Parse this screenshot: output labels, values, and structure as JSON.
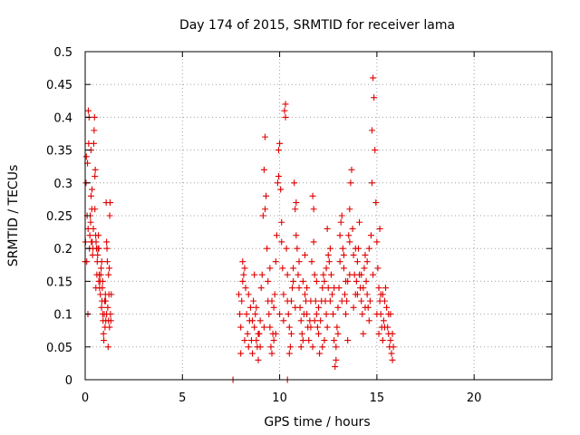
{
  "chart_data": {
    "type": "scatter",
    "title": "Day 174 of 2015, SRMTID for receiver lama",
    "xlabel": "GPS time / hours",
    "ylabel": "SRMTID / TECUs",
    "xlim": [
      0,
      24
    ],
    "ylim": [
      0,
      0.5
    ],
    "xticks": [
      0,
      5,
      10,
      15,
      20
    ],
    "yticks": [
      0,
      0.05,
      0.1,
      0.15,
      0.2,
      0.25,
      0.3,
      0.35,
      0.4,
      0.45,
      0.5
    ],
    "xtick_labels": [
      "0",
      "5",
      "10",
      "15",
      "20"
    ],
    "ytick_labels": [
      "0",
      "0.05",
      "0.1",
      "0.15",
      "0.2",
      "0.25",
      "0.3",
      "0.35",
      "0.4",
      "0.45",
      "0.5"
    ],
    "grid": true,
    "marker": "+",
    "color": "#e00000",
    "series": [
      {
        "name": "SRMTID",
        "points": [
          [
            0.0,
            0.18
          ],
          [
            0.02,
            0.21
          ],
          [
            0.04,
            0.3
          ],
          [
            0.06,
            0.34
          ],
          [
            0.08,
            0.18
          ],
          [
            0.1,
            0.25
          ],
          [
            0.12,
            0.33
          ],
          [
            0.14,
            0.1
          ],
          [
            0.16,
            0.41
          ],
          [
            0.18,
            0.36
          ],
          [
            0.2,
            0.4
          ],
          [
            0.22,
            0.2
          ],
          [
            0.24,
            0.22
          ],
          [
            0.26,
            0.25
          ],
          [
            0.28,
            0.24
          ],
          [
            0.3,
            0.35
          ],
          [
            0.32,
            0.21
          ],
          [
            0.34,
            0.26
          ],
          [
            0.36,
            0.21
          ],
          [
            0.38,
            0.19
          ],
          [
            0.4,
            0.2
          ],
          [
            0.42,
            0.23
          ],
          [
            0.44,
            0.36
          ],
          [
            0.46,
            0.38
          ],
          [
            0.48,
            0.4
          ],
          [
            0.5,
            0.31
          ],
          [
            0.52,
            0.32
          ],
          [
            0.54,
            0.22
          ],
          [
            0.56,
            0.21
          ],
          [
            0.58,
            0.2
          ],
          [
            0.6,
            0.16
          ],
          [
            0.62,
            0.18
          ],
          [
            0.64,
            0.19
          ],
          [
            0.66,
            0.2
          ],
          [
            0.68,
            0.22
          ],
          [
            0.7,
            0.15
          ],
          [
            0.72,
            0.16
          ],
          [
            0.74,
            0.14
          ],
          [
            0.76,
            0.15
          ],
          [
            0.78,
            0.13
          ],
          [
            0.8,
            0.16
          ],
          [
            0.82,
            0.17
          ],
          [
            0.84,
            0.11
          ],
          [
            0.86,
            0.12
          ],
          [
            0.88,
            0.14
          ],
          [
            0.9,
            0.1
          ],
          [
            0.92,
            0.09
          ],
          [
            0.94,
            0.07
          ],
          [
            0.96,
            0.06
          ],
          [
            0.98,
            0.1
          ],
          [
            1.0,
            0.12
          ],
          [
            1.02,
            0.08
          ],
          [
            1.04,
            0.13
          ],
          [
            1.06,
            0.09
          ],
          [
            1.08,
            0.27
          ],
          [
            1.1,
            0.21
          ],
          [
            1.12,
            0.2
          ],
          [
            1.14,
            0.18
          ],
          [
            1.16,
            0.11
          ],
          [
            1.18,
            0.05
          ],
          [
            1.2,
            0.09
          ],
          [
            1.22,
            0.13
          ],
          [
            1.24,
            0.17
          ],
          [
            1.26,
            0.25
          ],
          [
            1.28,
            0.27
          ],
          [
            1.3,
            0.1
          ],
          [
            1.32,
            0.09
          ],
          [
            1.34,
            0.13
          ],
          [
            0.3,
            0.28
          ],
          [
            0.5,
            0.26
          ],
          [
            0.7,
            0.2
          ],
          [
            0.9,
            0.15
          ],
          [
            1.1,
            0.1
          ],
          [
            1.25,
            0.08
          ],
          [
            0.15,
            0.23
          ],
          [
            0.35,
            0.29
          ],
          [
            0.55,
            0.14
          ],
          [
            0.85,
            0.18
          ],
          [
            1.05,
            0.12
          ],
          [
            1.2,
            0.16
          ],
          [
            7.6,
            0.0
          ],
          [
            10.4,
            0.0
          ],
          [
            7.9,
            0.13
          ],
          [
            7.95,
            0.1
          ],
          [
            8.0,
            0.08
          ],
          [
            8.05,
            0.12
          ],
          [
            8.1,
            0.15
          ],
          [
            8.15,
            0.16
          ],
          [
            8.2,
            0.17
          ],
          [
            8.25,
            0.14
          ],
          [
            8.3,
            0.1
          ],
          [
            8.35,
            0.07
          ],
          [
            8.4,
            0.05
          ],
          [
            8.45,
            0.09
          ],
          [
            8.5,
            0.11
          ],
          [
            8.55,
            0.06
          ],
          [
            8.6,
            0.04
          ],
          [
            8.65,
            0.12
          ],
          [
            8.7,
            0.08
          ],
          [
            8.75,
            0.1
          ],
          [
            8.8,
            0.06
          ],
          [
            8.85,
            0.05
          ],
          [
            8.9,
            0.03
          ],
          [
            8.95,
            0.07
          ],
          [
            9.0,
            0.09
          ],
          [
            9.05,
            0.14
          ],
          [
            9.1,
            0.16
          ],
          [
            9.15,
            0.25
          ],
          [
            9.2,
            0.32
          ],
          [
            9.25,
            0.37
          ],
          [
            9.3,
            0.28
          ],
          [
            9.35,
            0.2
          ],
          [
            9.4,
            0.12
          ],
          [
            9.45,
            0.1
          ],
          [
            9.5,
            0.08
          ],
          [
            9.55,
            0.05
          ],
          [
            9.6,
            0.04
          ],
          [
            9.65,
            0.07
          ],
          [
            9.7,
            0.11
          ],
          [
            9.75,
            0.13
          ],
          [
            9.8,
            0.18
          ],
          [
            9.85,
            0.22
          ],
          [
            9.9,
            0.3
          ],
          [
            9.95,
            0.35
          ],
          [
            10.0,
            0.36
          ],
          [
            10.05,
            0.29
          ],
          [
            10.1,
            0.24
          ],
          [
            10.15,
            0.17
          ],
          [
            10.2,
            0.13
          ],
          [
            10.25,
            0.41
          ],
          [
            10.3,
            0.42
          ],
          [
            10.35,
            0.2
          ],
          [
            10.4,
            0.16
          ],
          [
            10.45,
            0.1
          ],
          [
            10.5,
            0.08
          ],
          [
            10.55,
            0.05
          ],
          [
            10.6,
            0.12
          ],
          [
            10.65,
            0.14
          ],
          [
            10.7,
            0.15
          ],
          [
            10.75,
            0.3
          ],
          [
            10.8,
            0.26
          ],
          [
            10.85,
            0.22
          ],
          [
            10.9,
            0.2
          ],
          [
            10.95,
            0.16
          ],
          [
            11.0,
            0.14
          ],
          [
            11.05,
            0.11
          ],
          [
            11.1,
            0.09
          ],
          [
            11.15,
            0.07
          ],
          [
            11.2,
            0.06
          ],
          [
            11.25,
            0.1
          ],
          [
            11.3,
            0.13
          ],
          [
            11.35,
            0.12
          ],
          [
            11.4,
            0.1
          ],
          [
            11.45,
            0.08
          ],
          [
            11.5,
            0.06
          ],
          [
            11.55,
            0.09
          ],
          [
            11.6,
            0.12
          ],
          [
            11.65,
            0.18
          ],
          [
            11.7,
            0.28
          ],
          [
            11.75,
            0.26
          ],
          [
            11.8,
            0.16
          ],
          [
            11.85,
            0.12
          ],
          [
            11.9,
            0.1
          ],
          [
            11.95,
            0.08
          ],
          [
            12.0,
            0.07
          ],
          [
            12.05,
            0.04
          ],
          [
            12.1,
            0.09
          ],
          [
            12.15,
            0.12
          ],
          [
            12.2,
            0.14
          ],
          [
            12.25,
            0.16
          ],
          [
            12.3,
            0.15
          ],
          [
            12.35,
            0.12
          ],
          [
            12.4,
            0.1
          ],
          [
            12.45,
            0.08
          ],
          [
            12.5,
            0.14
          ],
          [
            12.55,
            0.18
          ],
          [
            12.6,
            0.2
          ],
          [
            12.65,
            0.16
          ],
          [
            12.7,
            0.13
          ],
          [
            12.75,
            0.1
          ],
          [
            12.8,
            0.06
          ],
          [
            12.85,
            0.02
          ],
          [
            12.9,
            0.05
          ],
          [
            12.95,
            0.08
          ],
          [
            13.0,
            0.11
          ],
          [
            13.05,
            0.14
          ],
          [
            13.1,
            0.18
          ],
          [
            13.15,
            0.24
          ],
          [
            13.2,
            0.25
          ],
          [
            13.25,
            0.2
          ],
          [
            13.3,
            0.17
          ],
          [
            13.35,
            0.13
          ],
          [
            13.4,
            0.1
          ],
          [
            13.45,
            0.12
          ],
          [
            13.5,
            0.15
          ],
          [
            13.55,
            0.22
          ],
          [
            13.6,
            0.26
          ],
          [
            13.65,
            0.3
          ],
          [
            13.7,
            0.32
          ],
          [
            13.75,
            0.23
          ],
          [
            13.8,
            0.19
          ],
          [
            13.85,
            0.16
          ],
          [
            13.9,
            0.13
          ],
          [
            13.95,
            0.15
          ],
          [
            14.0,
            0.18
          ],
          [
            14.05,
            0.2
          ],
          [
            14.1,
            0.16
          ],
          [
            14.15,
            0.14
          ],
          [
            14.2,
            0.12
          ],
          [
            14.25,
            0.1
          ],
          [
            14.3,
            0.14
          ],
          [
            14.35,
            0.17
          ],
          [
            14.4,
            0.19
          ],
          [
            14.45,
            0.15
          ],
          [
            14.5,
            0.13
          ],
          [
            14.55,
            0.11
          ],
          [
            14.6,
            0.09
          ],
          [
            14.65,
            0.12
          ],
          [
            14.7,
            0.22
          ],
          [
            14.75,
            0.3
          ],
          [
            14.8,
            0.46
          ],
          [
            14.85,
            0.43
          ],
          [
            14.9,
            0.35
          ],
          [
            14.95,
            0.27
          ],
          [
            15.0,
            0.21
          ],
          [
            15.05,
            0.17
          ],
          [
            15.1,
            0.14
          ],
          [
            15.15,
            0.12
          ],
          [
            15.2,
            0.1
          ],
          [
            15.25,
            0.08
          ],
          [
            15.3,
            0.06
          ],
          [
            15.35,
            0.09
          ],
          [
            15.4,
            0.12
          ],
          [
            15.45,
            0.14
          ],
          [
            15.5,
            0.11
          ],
          [
            15.55,
            0.08
          ],
          [
            15.6,
            0.07
          ],
          [
            15.65,
            0.05
          ],
          [
            15.7,
            0.06
          ],
          [
            15.75,
            0.04
          ],
          [
            15.8,
            0.07
          ],
          [
            15.85,
            0.05
          ],
          [
            8.2,
            0.06
          ],
          [
            8.6,
            0.09
          ],
          [
            9.0,
            0.05
          ],
          [
            9.4,
            0.15
          ],
          [
            9.8,
            0.07
          ],
          [
            10.2,
            0.09
          ],
          [
            10.6,
            0.07
          ],
          [
            11.0,
            0.18
          ],
          [
            11.4,
            0.14
          ],
          [
            11.8,
            0.09
          ],
          [
            12.2,
            0.05
          ],
          [
            12.6,
            0.12
          ],
          [
            13.0,
            0.07
          ],
          [
            13.4,
            0.15
          ],
          [
            13.8,
            0.11
          ],
          [
            14.2,
            0.16
          ],
          [
            14.6,
            0.2
          ],
          [
            15.0,
            0.1
          ],
          [
            15.4,
            0.08
          ],
          [
            15.7,
            0.1
          ],
          [
            8.4,
            0.13
          ],
          [
            8.8,
            0.11
          ],
          [
            9.2,
            0.08
          ],
          [
            9.6,
            0.12
          ],
          [
            10.0,
            0.1
          ],
          [
            10.4,
            0.12
          ],
          [
            10.8,
            0.11
          ],
          [
            11.2,
            0.15
          ],
          [
            11.6,
            0.08
          ],
          [
            12.0,
            0.11
          ],
          [
            12.4,
            0.17
          ],
          [
            12.8,
            0.14
          ],
          [
            13.2,
            0.12
          ],
          [
            13.6,
            0.16
          ],
          [
            14.0,
            0.13
          ],
          [
            14.4,
            0.11
          ],
          [
            14.8,
            0.16
          ],
          [
            15.2,
            0.13
          ],
          [
            15.6,
            0.1
          ],
          [
            9.25,
            0.26
          ],
          [
            9.95,
            0.31
          ],
          [
            10.3,
            0.4
          ],
          [
            10.85,
            0.27
          ],
          [
            11.75,
            0.21
          ],
          [
            12.45,
            0.23
          ],
          [
            13.1,
            0.22
          ],
          [
            13.6,
            0.21
          ],
          [
            14.1,
            0.24
          ],
          [
            14.75,
            0.38
          ],
          [
            15.15,
            0.23
          ],
          [
            8.1,
            0.18
          ],
          [
            8.7,
            0.16
          ],
          [
            9.5,
            0.17
          ],
          [
            10.1,
            0.21
          ],
          [
            10.7,
            0.17
          ],
          [
            11.3,
            0.19
          ],
          [
            11.9,
            0.15
          ],
          [
            12.5,
            0.19
          ],
          [
            13.3,
            0.19
          ],
          [
            13.9,
            0.2
          ],
          [
            14.5,
            0.18
          ],
          [
            15.3,
            0.13
          ],
          [
            8.0,
            0.04
          ],
          [
            8.9,
            0.07
          ],
          [
            9.7,
            0.06
          ],
          [
            10.5,
            0.04
          ],
          [
            11.1,
            0.05
          ],
          [
            11.7,
            0.05
          ],
          [
            12.3,
            0.06
          ],
          [
            12.9,
            0.03
          ],
          [
            13.5,
            0.06
          ],
          [
            14.3,
            0.07
          ],
          [
            15.1,
            0.07
          ],
          [
            15.8,
            0.03
          ]
        ]
      }
    ]
  }
}
